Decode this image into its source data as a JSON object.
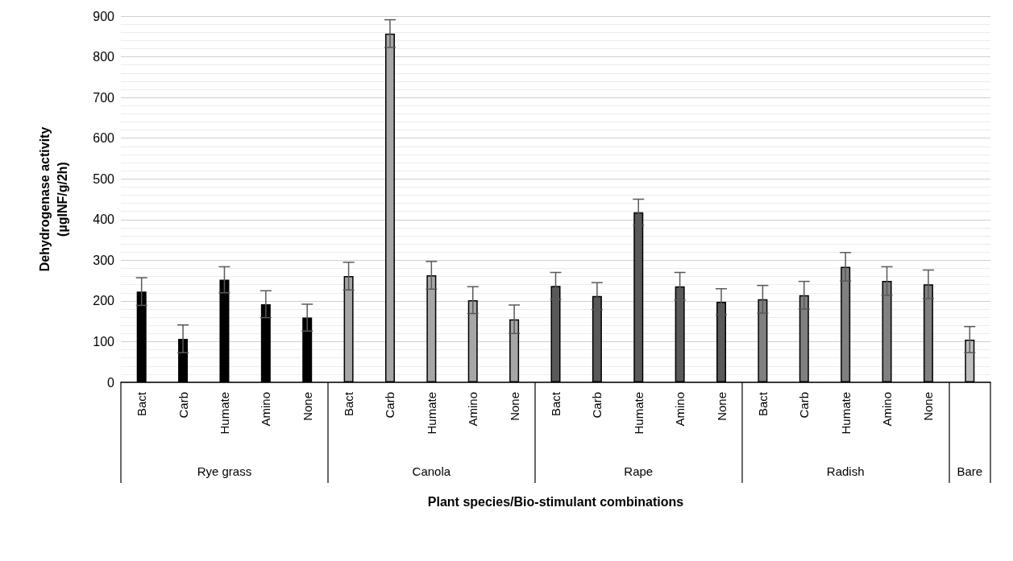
{
  "chart_data": {
    "type": "bar",
    "xlabel": "Plant species/Bio-stimulant combinations",
    "ylabel": "Dehydrogenase activity\n(µgINF/g/2h)",
    "annotations": [
      "Rye grass",
      "Canola",
      "Rape",
      "Radish",
      "Bare"
    ],
    "categories": [
      "Bact",
      "Carb",
      "Humate",
      "Amino",
      "None",
      "Bact",
      "Carb",
      "Humate",
      "Amino",
      "None",
      "Bact",
      "Carb",
      "Humate",
      "Amino",
      "None",
      "Bact",
      "Carb",
      "Humate",
      "Amino",
      "None",
      null
    ],
    "series": [
      {
        "color": "#000000",
        "values": [
          223,
          107,
          252,
          192,
          159,
          null,
          null,
          null,
          null,
          null,
          null,
          null,
          null,
          null,
          null,
          null,
          null,
          null,
          null,
          null,
          null
        ],
        "errors": [
          34,
          34,
          32,
          33,
          33,
          null,
          null,
          null,
          null,
          null,
          null,
          null,
          null,
          null,
          null,
          null,
          null,
          null,
          null,
          null,
          null
        ]
      },
      {
        "color": "#a6a6a6",
        "values": [
          null,
          null,
          null,
          null,
          null,
          261,
          857,
          263,
          202,
          155,
          null,
          null,
          null,
          null,
          null,
          null,
          null,
          null,
          null,
          null,
          null
        ],
        "errors": [
          null,
          null,
          null,
          null,
          null,
          34,
          34,
          34,
          33,
          35,
          null,
          null,
          null,
          null,
          null,
          null,
          null,
          null,
          null,
          null,
          null
        ]
      },
      {
        "color": "#595959",
        "values": [
          null,
          null,
          null,
          null,
          null,
          null,
          null,
          null,
          null,
          null,
          237,
          212,
          418,
          236,
          198,
          null,
          null,
          null,
          null,
          null,
          null
        ],
        "errors": [
          null,
          null,
          null,
          null,
          null,
          null,
          null,
          null,
          null,
          null,
          33,
          33,
          32,
          34,
          32,
          null,
          null,
          null,
          null,
          null,
          null
        ]
      },
      {
        "color": "#808080",
        "values": [
          null,
          null,
          null,
          null,
          null,
          null,
          null,
          null,
          null,
          null,
          null,
          null,
          null,
          null,
          null,
          204,
          214,
          284,
          249,
          241,
          null
        ],
        "errors": [
          null,
          null,
          null,
          null,
          null,
          null,
          null,
          null,
          null,
          null,
          null,
          null,
          null,
          null,
          null,
          34,
          34,
          35,
          35,
          35,
          null
        ]
      },
      {
        "color": "#bfbfbf",
        "values": [
          null,
          null,
          null,
          null,
          null,
          null,
          null,
          null,
          null,
          null,
          null,
          null,
          null,
          null,
          null,
          null,
          null,
          null,
          null,
          null,
          105
        ],
        "errors": [
          null,
          null,
          null,
          null,
          null,
          null,
          null,
          null,
          null,
          null,
          null,
          null,
          null,
          null,
          null,
          null,
          null,
          null,
          null,
          null,
          32
        ]
      }
    ],
    "ylim": [
      0,
      900
    ],
    "yticks": [
      0,
      100,
      200,
      300,
      400,
      500,
      600,
      700,
      800,
      900
    ],
    "grid": "y"
  }
}
